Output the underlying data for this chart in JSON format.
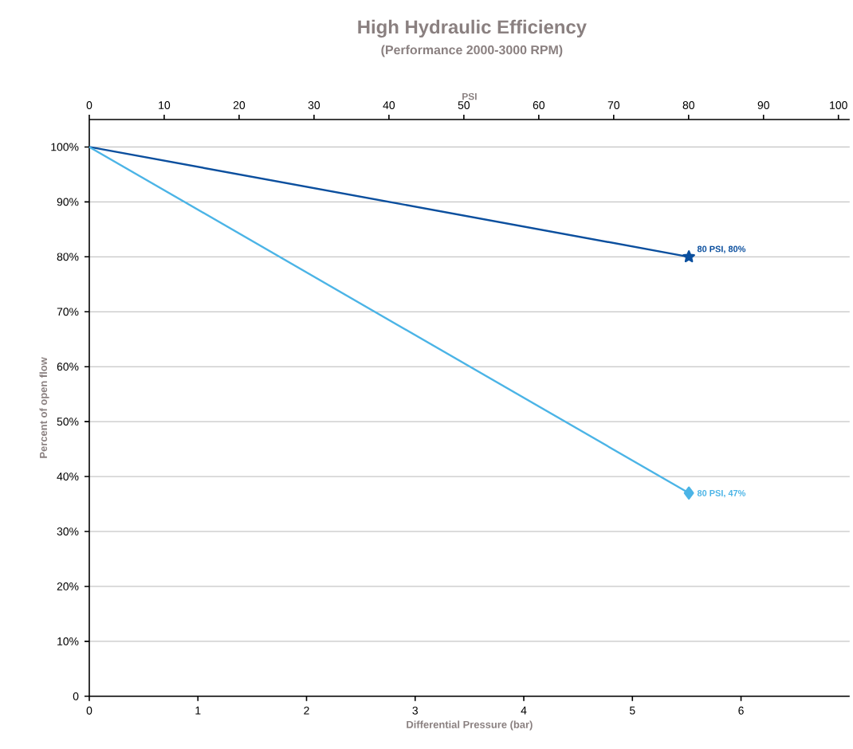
{
  "chart_data": {
    "type": "line",
    "title": "High Hydraulic Efficiency",
    "subtitle": "(Performance 2000-3000 RPM)",
    "xlabel": "Differential Pressure (bar)",
    "ylabel": "Percent of open flow",
    "x2label": "PSI",
    "xlim": [
      0,
      7
    ],
    "xticks": [
      0,
      1,
      2,
      3,
      4,
      5,
      6
    ],
    "x2lim": [
      0,
      101.5
    ],
    "x2ticks": [
      0,
      10,
      20,
      30,
      40,
      50,
      60,
      70,
      80,
      90,
      100
    ],
    "ylim": [
      0,
      105
    ],
    "yticks": [
      {
        "value": 0,
        "label": "0"
      },
      {
        "value": 10,
        "label": "10%"
      },
      {
        "value": 20,
        "label": "20%"
      },
      {
        "value": 30,
        "label": "30%"
      },
      {
        "value": 40,
        "label": "40%"
      },
      {
        "value": 50,
        "label": "50%"
      },
      {
        "value": 60,
        "label": "60%"
      },
      {
        "value": 70,
        "label": "70%"
      },
      {
        "value": 80,
        "label": "80%"
      },
      {
        "value": 90,
        "label": "90%"
      },
      {
        "value": 100,
        "label": "100%"
      }
    ],
    "grid": "y",
    "series": [
      {
        "color": "#0b4f9e",
        "marker": "star",
        "values": [
          100,
          80
        ]
      },
      {
        "color": "#4bb4e6",
        "marker": "diamond",
        "values": [
          100,
          37
        ]
      }
    ],
    "x": [
      0,
      5.52
    ],
    "annotations": [
      {
        "text": "80 PSI, 80%",
        "x": 5.52,
        "y": 80
      },
      {
        "text": "80 PSI, 47%",
        "x": 5.52,
        "y": 37
      }
    ]
  }
}
